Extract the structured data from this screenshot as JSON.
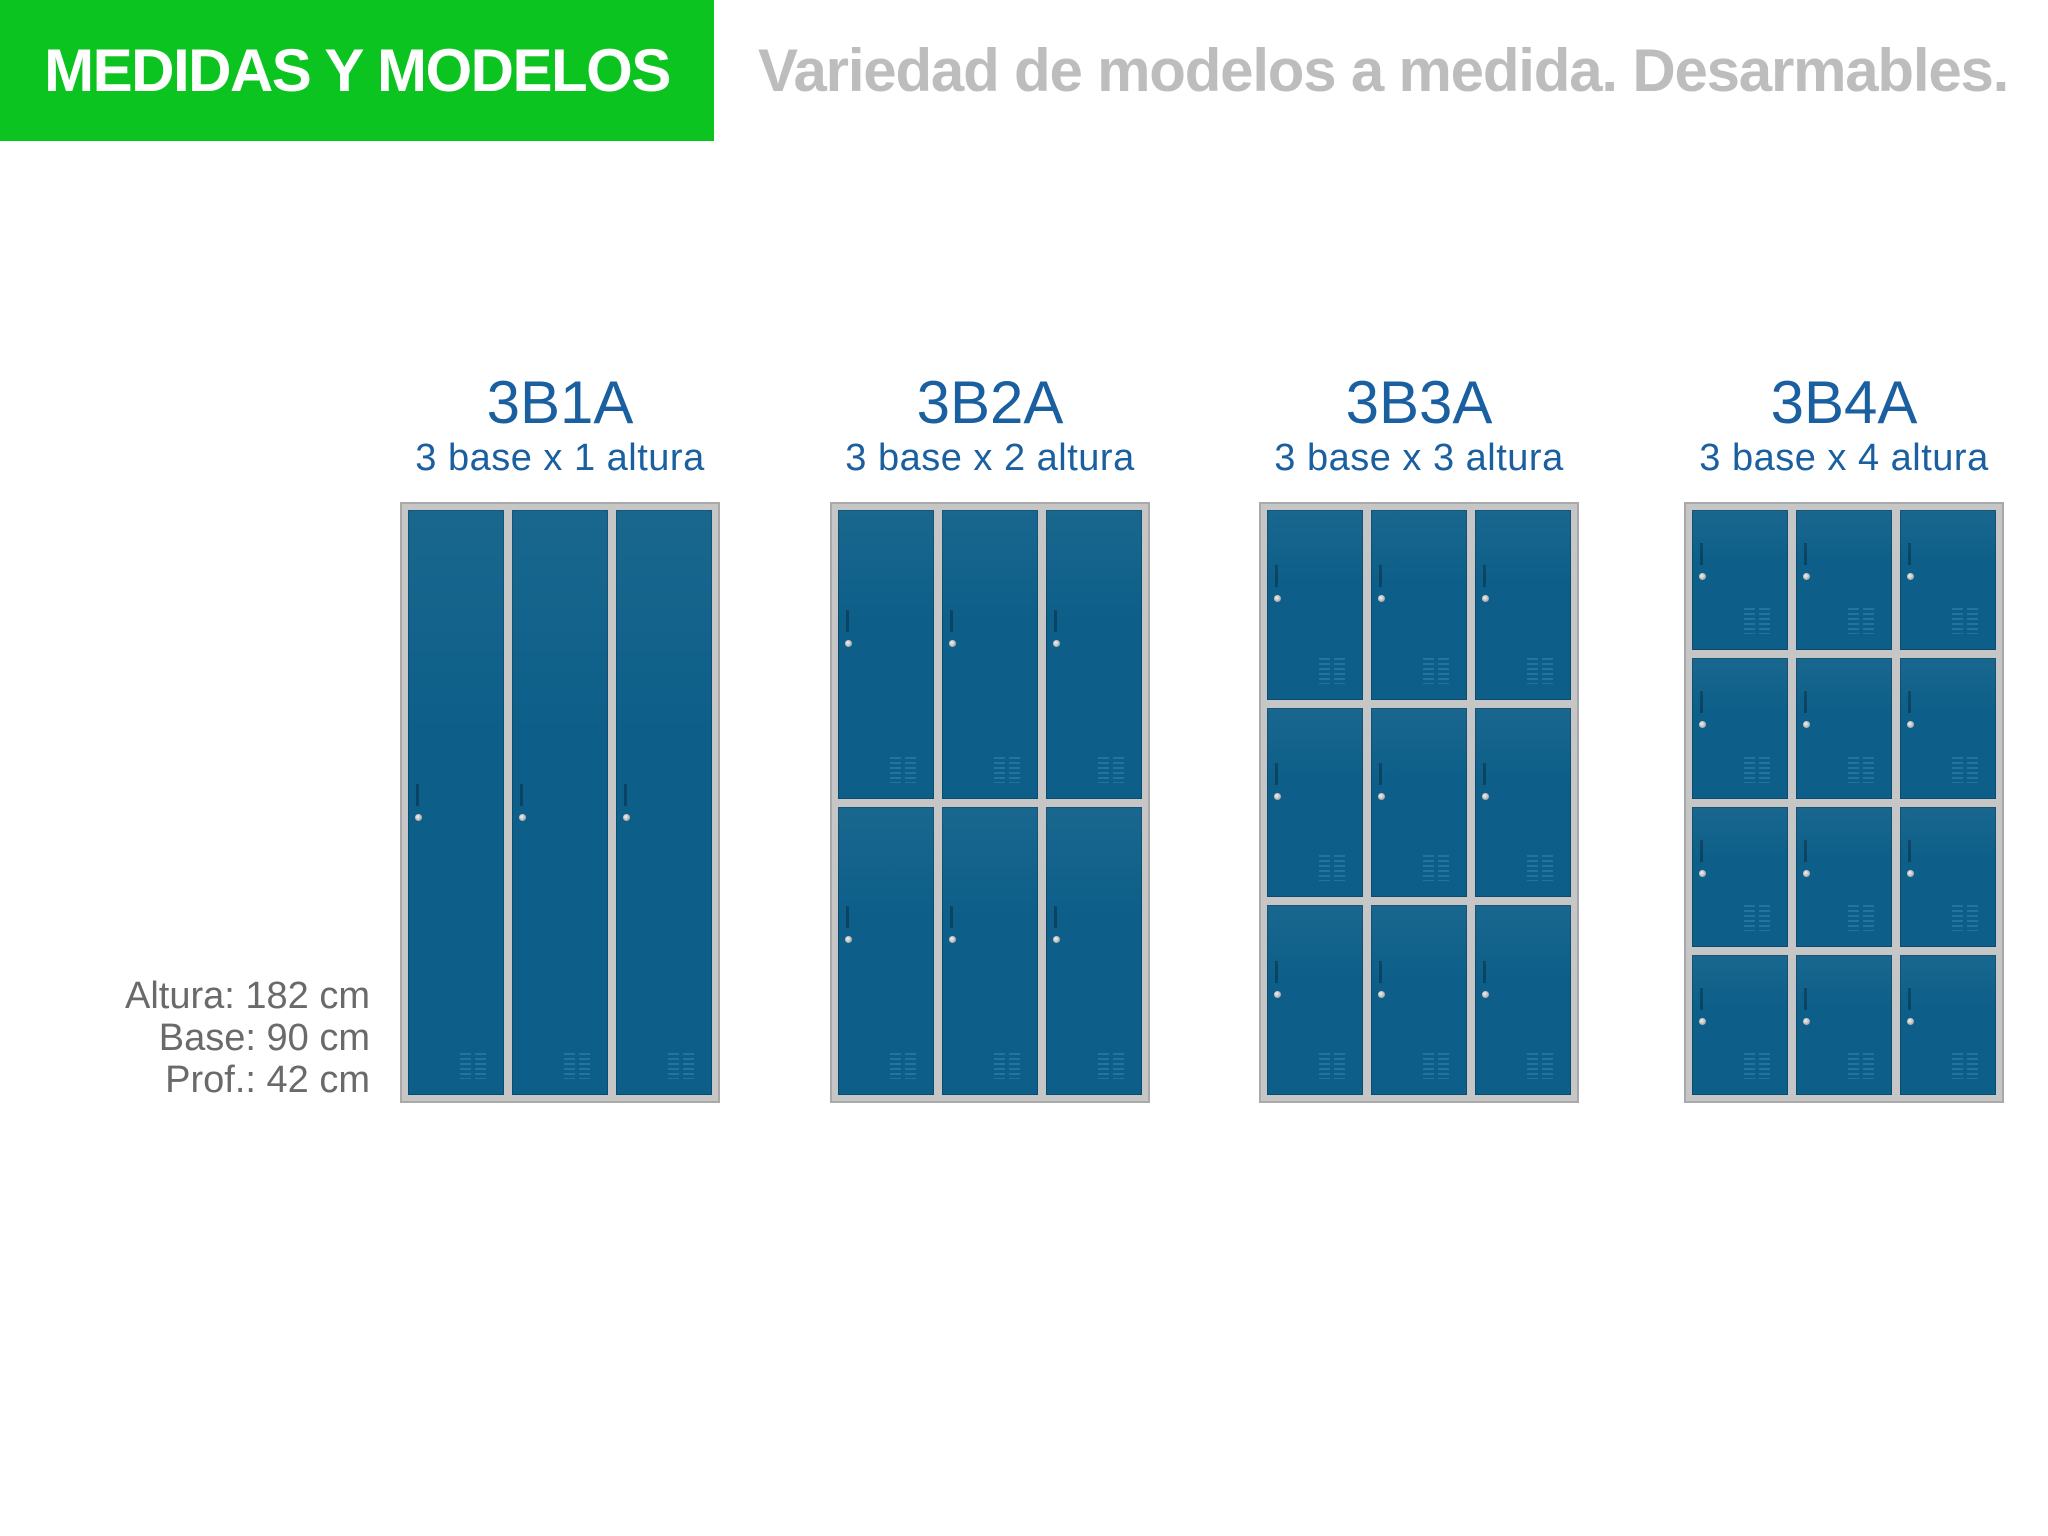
{
  "header": {
    "title": "MEDIDAS Y MODELOS",
    "subtitle": "Variedad de modelos a medida. Desarmables.",
    "accent_color": "#0cc420"
  },
  "models": [
    {
      "code": "3B1A",
      "description": "3 base x 1 altura",
      "columns": 3,
      "rows": 1
    },
    {
      "code": "3B2A",
      "description": "3 base x 2 altura",
      "columns": 3,
      "rows": 2
    },
    {
      "code": "3B3A",
      "description": "3 base x 3 altura",
      "columns": 3,
      "rows": 3
    },
    {
      "code": "3B4A",
      "description": "3 base x 4 altura",
      "columns": 3,
      "rows": 4
    }
  ],
  "dimensions": {
    "height": "Altura: 182 cm",
    "base": "Base: 90 cm",
    "depth": "Prof.: 42 cm"
  },
  "colors": {
    "door": "#0d5f89",
    "frame": "#c6c6c6",
    "text_blue": "#1a5f9f",
    "text_gray": "#6a6a6a"
  }
}
